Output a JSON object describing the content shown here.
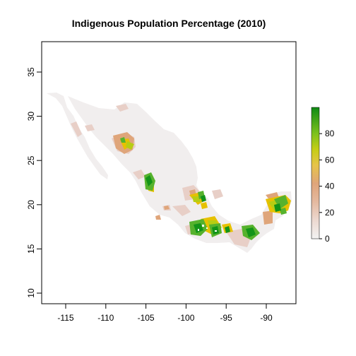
{
  "map": {
    "title": "Indigenous Population Percentage (2010)",
    "x_ticks": [
      "-115",
      "-110",
      "-105",
      "-100",
      "-95",
      "-90"
    ],
    "y_ticks": [
      "10",
      "15",
      "20",
      "25",
      "30",
      "35"
    ],
    "x_range": [
      -117.5,
      -86.5
    ],
    "y_range": [
      8.8,
      38.4
    ],
    "legend": {
      "ticks": [
        "0",
        "20",
        "40",
        "60",
        "80"
      ],
      "range": [
        0,
        100
      ],
      "colors": [
        "#f2f2f2",
        "#e7c0b3",
        "#dfa57a",
        "#e6c44a",
        "#c5cd15",
        "#7dc11d",
        "#2c9b1d",
        "#0f8a15"
      ]
    },
    "region_colors": {
      "land": "#f1eeee",
      "low": "#e8cfc7",
      "medium": "#dfa57a",
      "yellow": "#e6c100",
      "yellow_green": "#b7cd13",
      "green": "#56b22d",
      "dark_green": "#139418"
    }
  }
}
